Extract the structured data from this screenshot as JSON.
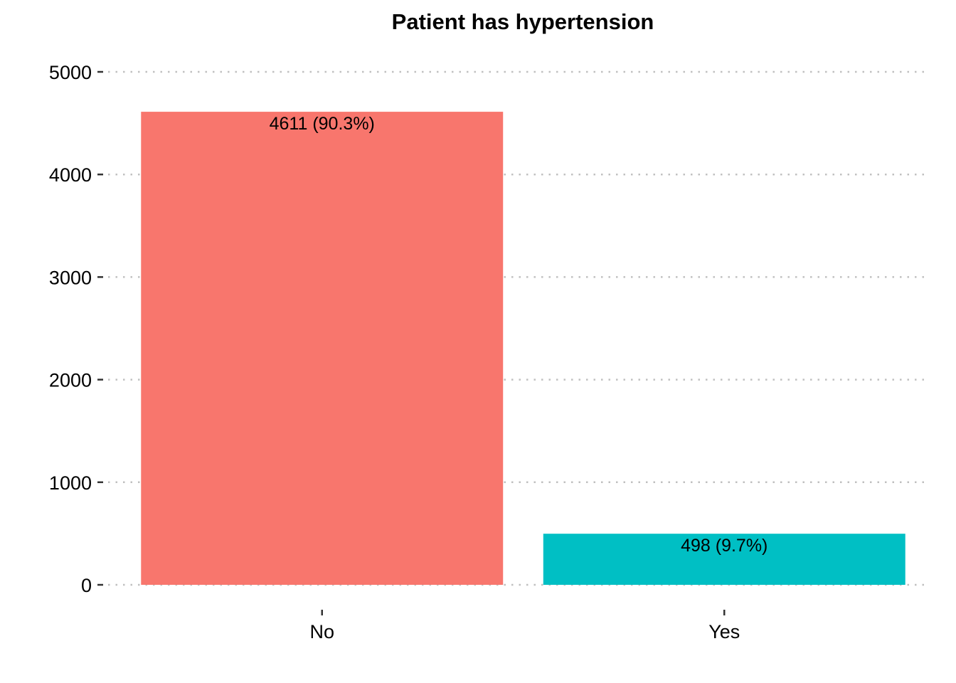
{
  "chart_data": {
    "type": "bar",
    "title": "Patient has hypertension",
    "xlabel": "",
    "ylabel": "",
    "categories": [
      "No",
      "Yes"
    ],
    "values": [
      4611,
      498
    ],
    "data_labels": [
      "4611 (90.3%)",
      "498 (9.7%)"
    ],
    "colors": [
      "#F8766D",
      "#00BFC4"
    ],
    "ylim": [
      0,
      5000
    ],
    "yticks": [
      0,
      1000,
      2000,
      3000,
      4000,
      5000
    ],
    "ytick_labels": [
      "0",
      "1000",
      "2000",
      "3000",
      "4000",
      "5000"
    ],
    "grid": "horizontal-dotted",
    "legend": "none"
  }
}
